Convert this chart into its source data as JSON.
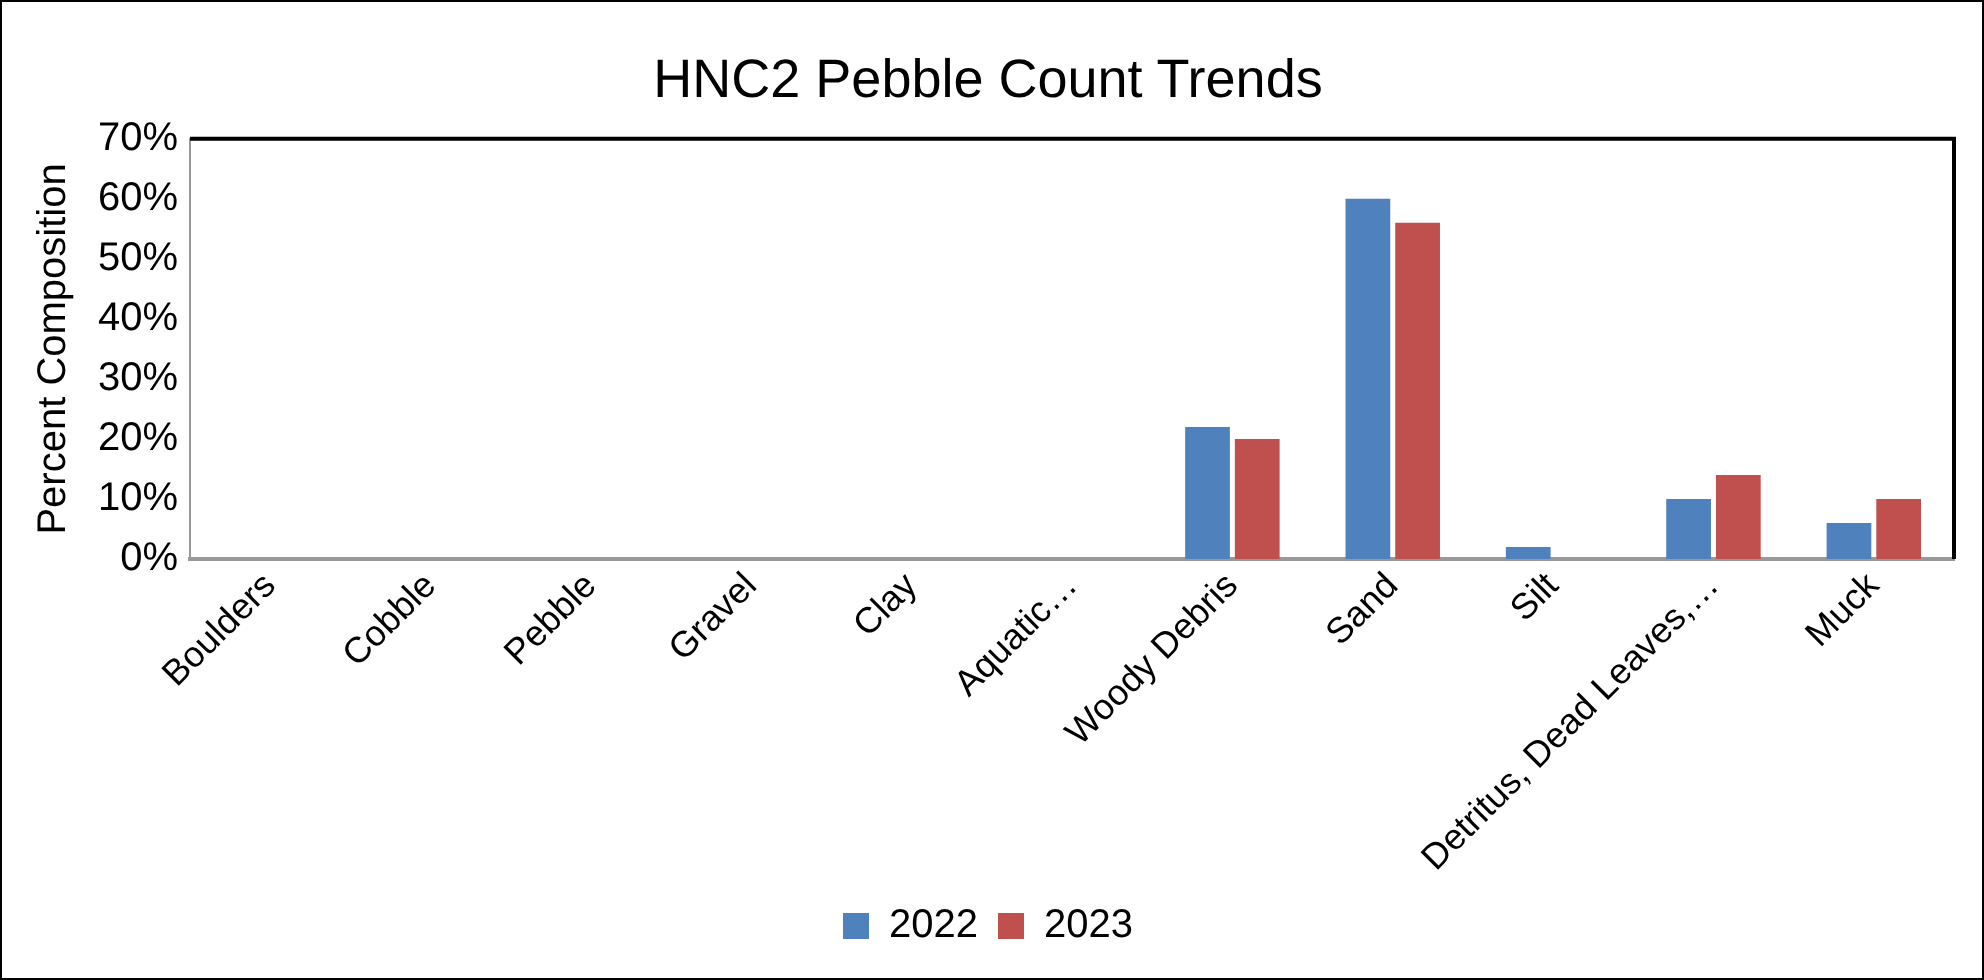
{
  "chart_data": {
    "type": "bar",
    "title": "HNC2 Pebble Count Trends",
    "ylabel": "Percent Composition",
    "categories": [
      "Boulders",
      "Cobble",
      "Pebble",
      "Gravel",
      "Clay",
      "Aquatic…",
      "Woody Debris",
      "Sand",
      "Silt",
      "Detritus, Dead Leaves,…",
      "Muck"
    ],
    "series": [
      {
        "name": "2022",
        "color": "#4f81bd",
        "values": [
          0,
          0,
          0,
          0,
          0,
          0,
          22,
          60,
          2,
          10,
          6
        ]
      },
      {
        "name": "2023",
        "color": "#c0504d",
        "values": [
          0,
          0,
          0,
          0,
          0,
          0,
          20,
          56,
          0,
          14,
          10
        ]
      }
    ],
    "ylim": [
      0,
      70
    ],
    "yticks": [
      {
        "value": 0,
        "label": "0%"
      },
      {
        "value": 10,
        "label": "10%"
      },
      {
        "value": 20,
        "label": "20%"
      },
      {
        "value": 30,
        "label": "30%"
      },
      {
        "value": 40,
        "label": "40%"
      },
      {
        "value": 50,
        "label": "50%"
      },
      {
        "value": 60,
        "label": "60%"
      },
      {
        "value": 70,
        "label": "70%"
      }
    ],
    "grid": false,
    "legend": "bottom"
  }
}
